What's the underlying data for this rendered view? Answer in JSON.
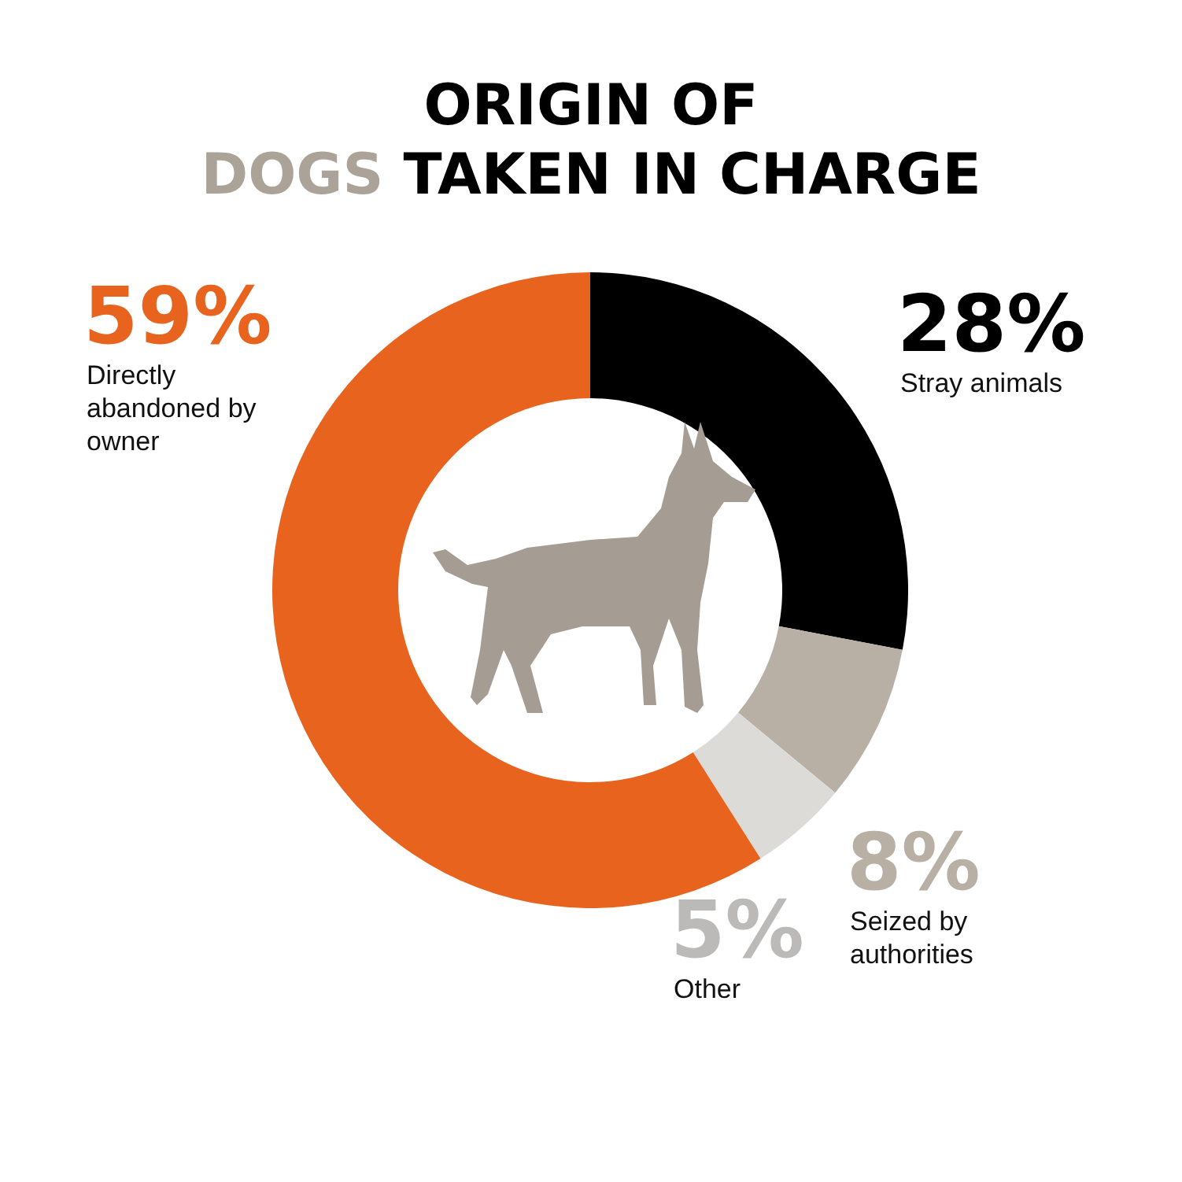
{
  "chart_data": {
    "type": "donut",
    "title": "ORIGIN OF DOGS TAKEN IN CHARGE",
    "categories": [
      "Stray animals",
      "Seized by authorities",
      "Other",
      "Directly abandoned by owner"
    ],
    "values": [
      28,
      8,
      5,
      59
    ],
    "value_labels": [
      "28%",
      "8%",
      "5%",
      "59%"
    ],
    "colors": [
      "#000000",
      "#b8b0a5",
      "#dcdbd8",
      "#e8641e"
    ]
  }
}
